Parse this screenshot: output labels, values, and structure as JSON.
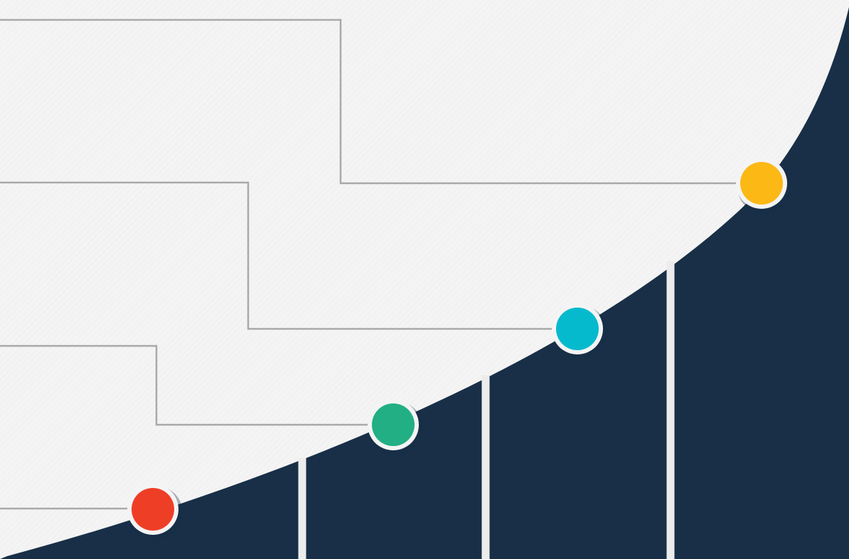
{
  "colors": {
    "background": "#f4f4f4",
    "hatch": "#e9e9e9",
    "curve_fill": "#182f47",
    "connector": "#a9a9a9",
    "divider": "#ececec",
    "marker_ring": "#f4f4f4"
  },
  "markers": [
    {
      "id": "milestone-1",
      "color": "#ef3e26"
    },
    {
      "id": "milestone-2",
      "color": "#22af83"
    },
    {
      "id": "milestone-3",
      "color": "#06bace"
    },
    {
      "id": "milestone-4",
      "color": "#fcb814"
    }
  ]
}
